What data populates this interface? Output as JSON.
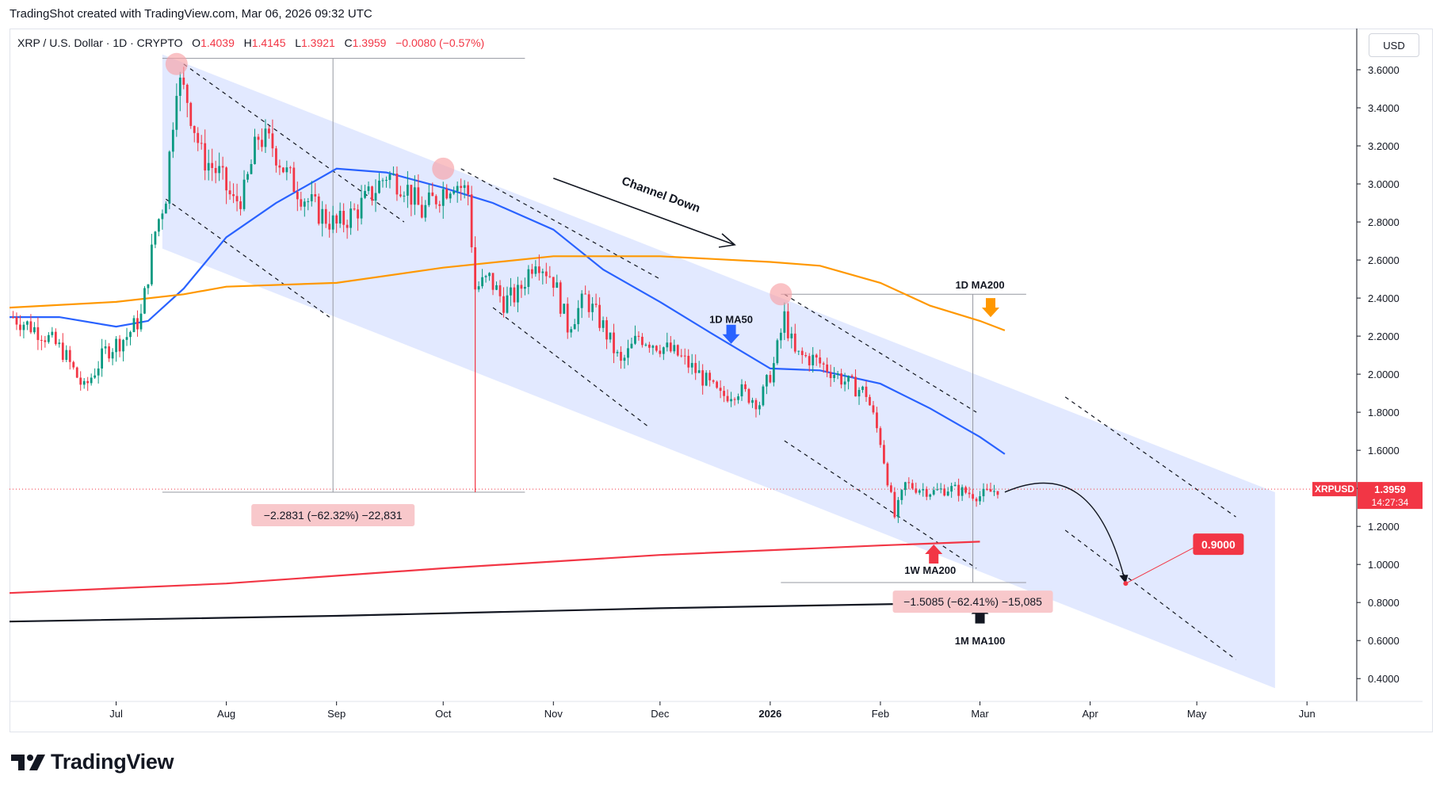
{
  "header": {
    "credit": "TradingShot created with TradingView.com, Mar 06, 2026 09:32 UTC"
  },
  "legend": {
    "symbol": "XRP / U.S. Dollar · 1D · CRYPTO",
    "open_label": "O",
    "open": "1.4039",
    "high_label": "H",
    "high": "1.4145",
    "low_label": "L",
    "low": "1.3921",
    "close_label": "C",
    "close": "1.3959",
    "change": "−0.0080 (−0.57%)"
  },
  "currency": "USD",
  "branding": {
    "logo_text": "TradingView"
  },
  "colors": {
    "up": "#089981",
    "down": "#f23645",
    "ma50": "#2962ff",
    "ma200_daily": "#ff9800",
    "ma200_weekly": "#f23645",
    "ma100_monthly": "#131722",
    "channel": "#dbe4ff",
    "target": "#f23645"
  },
  "chart_data": {
    "type": "candlestick",
    "symbol": "XRPUSD",
    "timeframe": "1D",
    "x_axis": {
      "type": "date",
      "range": [
        "2025-06-01",
        "2026-06-15"
      ],
      "ticks": [
        {
          "date": "2025-07-01",
          "label": "Jul"
        },
        {
          "date": "2025-08-01",
          "label": "Aug"
        },
        {
          "date": "2025-09-01",
          "label": "Sep"
        },
        {
          "date": "2025-10-01",
          "label": "Oct"
        },
        {
          "date": "2025-11-01",
          "label": "Nov"
        },
        {
          "date": "2025-12-01",
          "label": "Dec"
        },
        {
          "date": "2026-01-01",
          "label": "2026"
        },
        {
          "date": "2026-02-01",
          "label": "Feb"
        },
        {
          "date": "2026-03-01",
          "label": "Mar"
        },
        {
          "date": "2026-04-01",
          "label": "Apr"
        },
        {
          "date": "2026-05-01",
          "label": "May"
        },
        {
          "date": "2026-06-01",
          "label": "Jun"
        }
      ]
    },
    "y_axis": {
      "range": [
        0.28,
        3.8
      ],
      "ticks": [
        "3.6000",
        "3.4000",
        "3.2000",
        "3.0000",
        "2.8000",
        "2.6000",
        "2.4000",
        "2.2000",
        "2.0000",
        "1.8000",
        "1.6000",
        "1.4000",
        "1.2000",
        "1.0000",
        "0.8000",
        "0.6000",
        "0.4000"
      ]
    },
    "price_path": [
      [
        "2025-06-02",
        2.3
      ],
      [
        "2025-06-10",
        2.22
      ],
      [
        "2025-06-16",
        2.12
      ],
      [
        "2025-06-22",
        1.92
      ],
      [
        "2025-06-28",
        2.12
      ],
      [
        "2025-07-04",
        2.2
      ],
      [
        "2025-07-08",
        2.3
      ],
      [
        "2025-07-12",
        2.75
      ],
      [
        "2025-07-15",
        2.95
      ],
      [
        "2025-07-18",
        3.55
      ],
      [
        "2025-07-21",
        3.45
      ],
      [
        "2025-07-25",
        3.15
      ],
      [
        "2025-07-30",
        3.05
      ],
      [
        "2025-08-03",
        2.9
      ],
      [
        "2025-08-06",
        2.95
      ],
      [
        "2025-08-10",
        3.25
      ],
      [
        "2025-08-14",
        3.2
      ],
      [
        "2025-08-18",
        3.05
      ],
      [
        "2025-08-22",
        2.95
      ],
      [
        "2025-08-27",
        2.85
      ],
      [
        "2025-09-01",
        2.78
      ],
      [
        "2025-09-06",
        2.85
      ],
      [
        "2025-09-11",
        2.95
      ],
      [
        "2025-09-15",
        3.05
      ],
      [
        "2025-09-20",
        3.0
      ],
      [
        "2025-09-25",
        2.85
      ],
      [
        "2025-09-30",
        2.95
      ],
      [
        "2025-10-04",
        3.02
      ],
      [
        "2025-10-08",
        2.95
      ],
      [
        "2025-10-10",
        2.45
      ],
      [
        "2025-10-14",
        2.5
      ],
      [
        "2025-10-18",
        2.38
      ],
      [
        "2025-10-22",
        2.42
      ],
      [
        "2025-10-27",
        2.62
      ],
      [
        "2025-11-01",
        2.5
      ],
      [
        "2025-11-05",
        2.25
      ],
      [
        "2025-11-10",
        2.4
      ],
      [
        "2025-11-15",
        2.25
      ],
      [
        "2025-11-20",
        2.05
      ],
      [
        "2025-11-25",
        2.2
      ],
      [
        "2025-12-01",
        2.15
      ],
      [
        "2025-12-06",
        2.1
      ],
      [
        "2025-12-12",
        2.0
      ],
      [
        "2025-12-18",
        1.88
      ],
      [
        "2025-12-23",
        1.92
      ],
      [
        "2025-12-29",
        1.85
      ],
      [
        "2026-01-02",
        2.05
      ],
      [
        "2026-01-05",
        2.3
      ],
      [
        "2026-01-08",
        2.1
      ],
      [
        "2026-01-13",
        2.08
      ],
      [
        "2026-01-18",
        2.02
      ],
      [
        "2026-01-23",
        1.95
      ],
      [
        "2026-01-28",
        1.9
      ],
      [
        "2026-02-01",
        1.65
      ],
      [
        "2026-02-05",
        1.25
      ],
      [
        "2026-02-08",
        1.42
      ],
      [
        "2026-02-12",
        1.4
      ],
      [
        "2026-02-16",
        1.38
      ],
      [
        "2026-02-20",
        1.4
      ],
      [
        "2026-02-25",
        1.38
      ],
      [
        "2026-03-01",
        1.36
      ],
      [
        "2026-03-06",
        1.3959
      ]
    ],
    "moving_averages": [
      {
        "name": "1D MA50",
        "color": "#2962ff",
        "points": [
          [
            "2025-06-01",
            2.3
          ],
          [
            "2025-06-15",
            2.3
          ],
          [
            "2025-07-01",
            2.25
          ],
          [
            "2025-07-10",
            2.28
          ],
          [
            "2025-07-20",
            2.45
          ],
          [
            "2025-08-01",
            2.72
          ],
          [
            "2025-08-15",
            2.9
          ],
          [
            "2025-09-01",
            3.08
          ],
          [
            "2025-09-15",
            3.06
          ],
          [
            "2025-10-01",
            2.98
          ],
          [
            "2025-10-15",
            2.9
          ],
          [
            "2025-11-01",
            2.76
          ],
          [
            "2025-11-15",
            2.55
          ],
          [
            "2025-12-01",
            2.38
          ],
          [
            "2025-12-15",
            2.22
          ],
          [
            "2026-01-01",
            2.03
          ],
          [
            "2026-01-15",
            2.02
          ],
          [
            "2026-02-01",
            1.95
          ],
          [
            "2026-02-15",
            1.82
          ],
          [
            "2026-03-01",
            1.67
          ],
          [
            "2026-03-08",
            1.58
          ]
        ]
      },
      {
        "name": "1D MA200",
        "color": "#ff9800",
        "points": [
          [
            "2025-06-01",
            2.35
          ],
          [
            "2025-07-01",
            2.38
          ],
          [
            "2025-07-20",
            2.42
          ],
          [
            "2025-08-01",
            2.46
          ],
          [
            "2025-09-01",
            2.48
          ],
          [
            "2025-10-01",
            2.56
          ],
          [
            "2025-11-01",
            2.62
          ],
          [
            "2025-12-01",
            2.62
          ],
          [
            "2026-01-01",
            2.59
          ],
          [
            "2026-01-15",
            2.57
          ],
          [
            "2026-02-01",
            2.48
          ],
          [
            "2026-02-15",
            2.36
          ],
          [
            "2026-03-01",
            2.28
          ],
          [
            "2026-03-08",
            2.23
          ]
        ]
      },
      {
        "name": "1W MA200",
        "color": "#f23645",
        "points": [
          [
            "2025-06-01",
            0.85
          ],
          [
            "2025-08-01",
            0.9
          ],
          [
            "2025-10-01",
            0.98
          ],
          [
            "2025-12-01",
            1.05
          ],
          [
            "2026-02-01",
            1.1
          ],
          [
            "2026-03-01",
            1.12
          ]
        ]
      },
      {
        "name": "1M MA100",
        "color": "#131722",
        "points": [
          [
            "2025-06-01",
            0.7
          ],
          [
            "2025-09-01",
            0.73
          ],
          [
            "2025-12-01",
            0.77
          ],
          [
            "2026-03-01",
            0.8
          ]
        ]
      }
    ],
    "channel": {
      "label": "Channel Down",
      "upper": [
        [
          "2025-07-14",
          3.68
        ],
        [
          "2026-05-23",
          1.38
        ]
      ],
      "lower": [
        [
          "2025-07-14",
          2.66
        ],
        [
          "2026-05-23",
          0.35
        ]
      ]
    },
    "last_price": {
      "label": "XRPUSD",
      "value": "1.3959",
      "countdown": "14:27:34"
    },
    "target": {
      "value": "0.9000",
      "date": "2026-04-11"
    },
    "measurements": [
      {
        "text": "−2.2831 (−62.32%) −22,831"
      },
      {
        "text": "−1.5085 (−62.41%) −15,085"
      }
    ],
    "annotations": [
      {
        "text": "1D MA50"
      },
      {
        "text": "1D MA200"
      },
      {
        "text": "1W MA200"
      },
      {
        "text": "1M MA100"
      }
    ]
  }
}
